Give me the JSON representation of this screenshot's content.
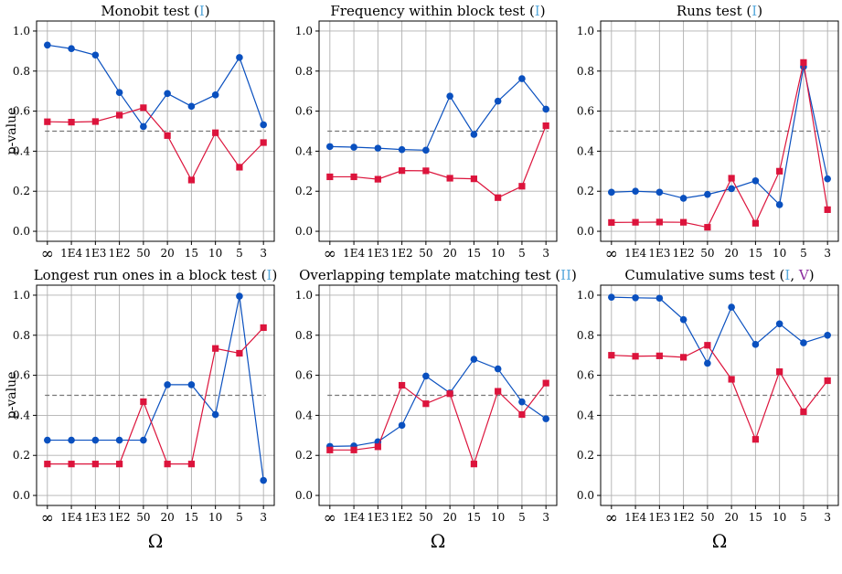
{
  "chart_data": [
    {
      "type": "line",
      "title_main": "Monobit test (",
      "title_tags": [
        {
          "text": "I",
          "color": "#5aaadc"
        }
      ],
      "title_end": ")",
      "categories": [
        "∞",
        "1E4",
        "1E3",
        "1E2",
        "50",
        "20",
        "15",
        "10",
        "5",
        "3"
      ],
      "ylabel": "p-value",
      "xlabel": "",
      "ylim": [
        0,
        1
      ],
      "yticks": [
        "0.0",
        "0.2",
        "0.4",
        "0.6",
        "0.8",
        "1.0"
      ],
      "threshold": 0.5,
      "grid": true,
      "series": [
        {
          "color": "#0a50bf",
          "marker": "circle",
          "values": [
            0.93,
            0.912,
            0.88,
            0.693,
            0.523,
            0.688,
            0.624,
            0.681,
            0.868,
            0.532
          ]
        },
        {
          "color": "#dc143c",
          "marker": "square",
          "values": [
            0.547,
            0.545,
            0.548,
            0.58,
            0.617,
            0.478,
            0.256,
            0.492,
            0.32,
            0.443
          ]
        }
      ]
    },
    {
      "type": "line",
      "title_main": "Frequency within block test (",
      "title_tags": [
        {
          "text": "I",
          "color": "#5aaadc"
        }
      ],
      "title_end": ")",
      "categories": [
        "∞",
        "1E4",
        "1E3",
        "1E2",
        "50",
        "20",
        "15",
        "10",
        "5",
        "3"
      ],
      "ylabel": "",
      "xlabel": "",
      "ylim": [
        0,
        1
      ],
      "yticks": [
        "0.0",
        "0.2",
        "0.4",
        "0.6",
        "0.8",
        "1.0"
      ],
      "threshold": 0.5,
      "grid": true,
      "series": [
        {
          "color": "#0a50bf",
          "marker": "circle",
          "values": [
            0.423,
            0.42,
            0.415,
            0.408,
            0.405,
            0.675,
            0.484,
            0.65,
            0.762,
            0.61
          ]
        },
        {
          "color": "#dc143c",
          "marker": "square",
          "values": [
            0.272,
            0.272,
            0.26,
            0.303,
            0.302,
            0.265,
            0.262,
            0.168,
            0.225,
            0.527
          ]
        }
      ]
    },
    {
      "type": "line",
      "title_main": "Runs test (",
      "title_tags": [
        {
          "text": "I",
          "color": "#5aaadc"
        }
      ],
      "title_end": ")",
      "categories": [
        "∞",
        "1E4",
        "1E3",
        "1E2",
        "50",
        "20",
        "15",
        "10",
        "5",
        "3"
      ],
      "ylabel": "",
      "xlabel": "",
      "ylim": [
        0,
        1
      ],
      "yticks": [
        "0.0",
        "0.2",
        "0.4",
        "0.6",
        "0.8",
        "1.0"
      ],
      "threshold": 0.5,
      "grid": true,
      "series": [
        {
          "color": "#0a50bf",
          "marker": "circle",
          "values": [
            0.195,
            0.2,
            0.195,
            0.165,
            0.184,
            0.213,
            0.252,
            0.133,
            0.822,
            0.262
          ]
        },
        {
          "color": "#dc143c",
          "marker": "square",
          "values": [
            0.044,
            0.045,
            0.046,
            0.045,
            0.02,
            0.265,
            0.04,
            0.3,
            0.843,
            0.108
          ]
        }
      ]
    },
    {
      "type": "line",
      "title_main": "Longest run ones in a block test (",
      "title_tags": [
        {
          "text": "I",
          "color": "#5aaadc"
        }
      ],
      "title_end": ")",
      "categories": [
        "∞",
        "1E4",
        "1E3",
        "1E2",
        "50",
        "20",
        "15",
        "10",
        "5",
        "3"
      ],
      "ylabel": "p-value",
      "xlabel": "Ω",
      "ylim": [
        0,
        1
      ],
      "yticks": [
        "0.0",
        "0.2",
        "0.4",
        "0.6",
        "0.8",
        "1.0"
      ],
      "threshold": 0.5,
      "grid": true,
      "series": [
        {
          "color": "#0a50bf",
          "marker": "circle",
          "values": [
            0.276,
            0.276,
            0.276,
            0.276,
            0.276,
            0.553,
            0.553,
            0.404,
            0.995,
            0.075
          ]
        },
        {
          "color": "#dc143c",
          "marker": "square",
          "values": [
            0.157,
            0.157,
            0.157,
            0.157,
            0.468,
            0.157,
            0.157,
            0.734,
            0.71,
            0.838
          ]
        }
      ]
    },
    {
      "type": "line",
      "title_main": "Overlapping template matching test (",
      "title_tags": [
        {
          "text": "II",
          "color": "#5aaadc"
        }
      ],
      "title_end": ")",
      "categories": [
        "∞",
        "1E4",
        "1E3",
        "1E2",
        "50",
        "20",
        "15",
        "10",
        "5",
        "3"
      ],
      "ylabel": "",
      "xlabel": "Ω",
      "ylim": [
        0,
        1
      ],
      "yticks": [
        "0.0",
        "0.2",
        "0.4",
        "0.6",
        "0.8",
        "1.0"
      ],
      "threshold": 0.5,
      "grid": true,
      "series": [
        {
          "color": "#0a50bf",
          "marker": "circle",
          "values": [
            0.245,
            0.247,
            0.268,
            0.35,
            0.596,
            0.512,
            0.68,
            0.632,
            0.467,
            0.383
          ]
        },
        {
          "color": "#dc143c",
          "marker": "square",
          "values": [
            0.227,
            0.227,
            0.243,
            0.55,
            0.458,
            0.508,
            0.157,
            0.52,
            0.404,
            0.561
          ]
        }
      ]
    },
    {
      "type": "line",
      "title_main": "Cumulative sums test (",
      "title_tags": [
        {
          "text": "I",
          "color": "#5aaadc"
        },
        {
          "text": ", ",
          "color": "#000000"
        },
        {
          "text": "V",
          "color": "#8a2a9e"
        }
      ],
      "title_end": ")",
      "categories": [
        "∞",
        "1E4",
        "1E3",
        "1E2",
        "50",
        "20",
        "15",
        "10",
        "5",
        "3"
      ],
      "ylabel": "",
      "xlabel": "Ω",
      "ylim": [
        0,
        1
      ],
      "yticks": [
        "0.0",
        "0.2",
        "0.4",
        "0.6",
        "0.8",
        "1.0"
      ],
      "threshold": 0.5,
      "grid": true,
      "series": [
        {
          "color": "#0a50bf",
          "marker": "circle",
          "values": [
            0.99,
            0.987,
            0.985,
            0.878,
            0.66,
            0.94,
            0.754,
            0.857,
            0.762,
            0.8
          ]
        },
        {
          "color": "#dc143c",
          "marker": "square",
          "values": [
            0.7,
            0.695,
            0.697,
            0.69,
            0.75,
            0.58,
            0.28,
            0.618,
            0.418,
            0.573
          ]
        }
      ]
    }
  ]
}
